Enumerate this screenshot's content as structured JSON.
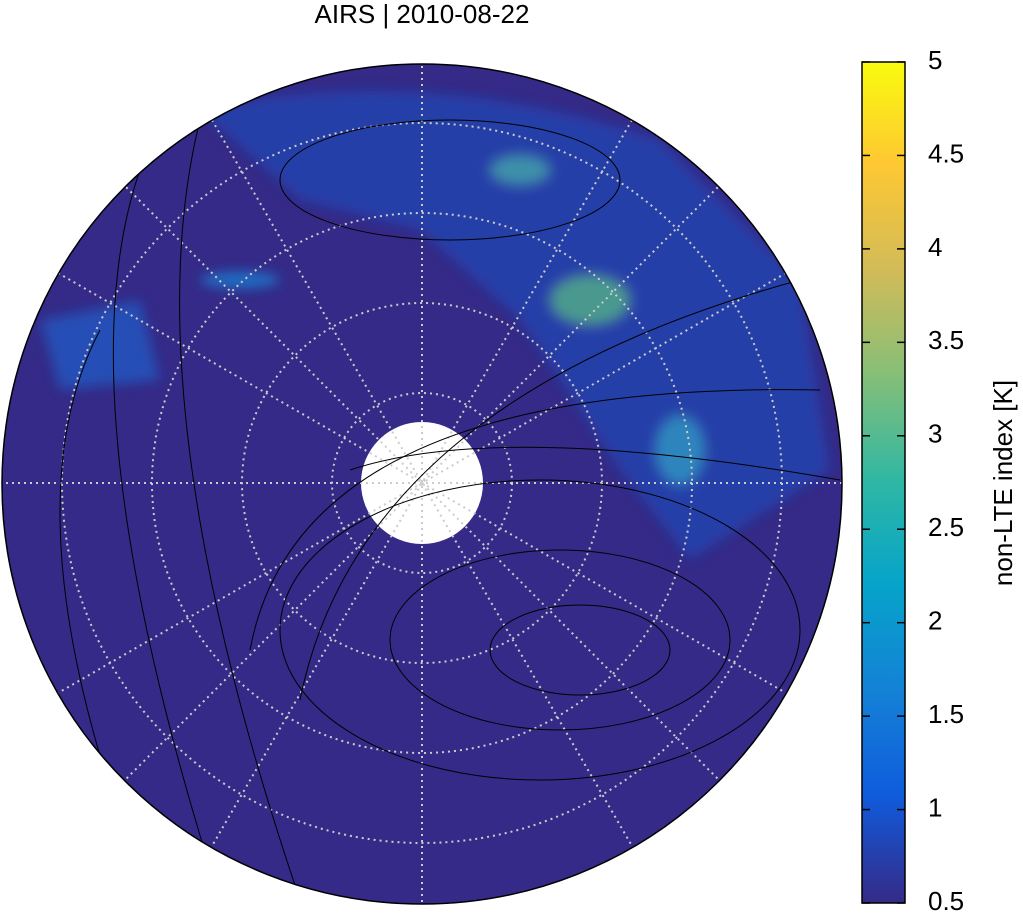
{
  "title": "AIRS | 2010-08-22",
  "colorbar": {
    "label": "non-LTE index [K]",
    "lim": [
      0.5,
      5
    ],
    "ticks": [
      0.5,
      1,
      1.5,
      2,
      2.5,
      3,
      3.5,
      4,
      4.5,
      5
    ]
  }
}
